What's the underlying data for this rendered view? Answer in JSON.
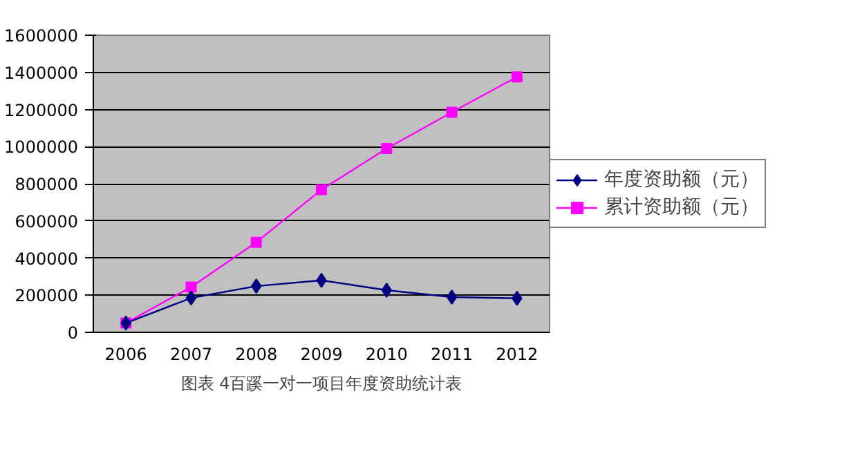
{
  "chart_data": {
    "type": "line",
    "categories": [
      "2006",
      "2007",
      "2008",
      "2009",
      "2010",
      "2011",
      "2012"
    ],
    "series": [
      {
        "name": "年度资助额（元）",
        "color": "#000080",
        "marker": "diamond",
        "values": [
          50000,
          185000,
          249000,
          280000,
          227000,
          190000,
          183000
        ]
      },
      {
        "name": "累计资助额（元）",
        "color": "#ff00ff",
        "marker": "square",
        "values": [
          50000,
          244000,
          485000,
          768000,
          990000,
          1185000,
          1376000
        ]
      }
    ],
    "ylim": [
      0,
      1600000
    ],
    "yticks": [
      0,
      200000,
      400000,
      600000,
      800000,
      1000000,
      1200000,
      1400000,
      1600000
    ],
    "grid": "y",
    "legend": "right",
    "annotations": [
      "图表 4百蹊一对一项目年度资助统计表"
    ]
  }
}
